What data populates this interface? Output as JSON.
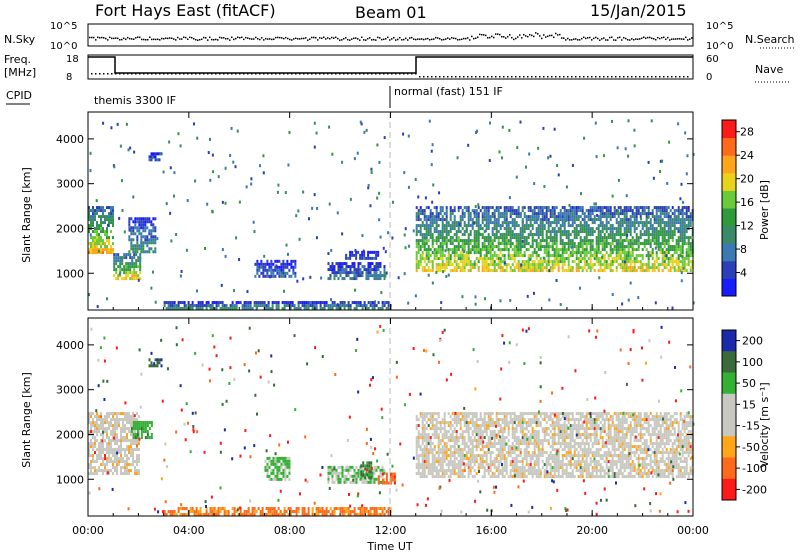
{
  "header": {
    "radar_title": "Fort Hays East (fitACF)",
    "beam": "Beam 01",
    "date": "15/Jan/2015"
  },
  "summary_panel": {
    "nsky_label": "N.Sky",
    "nsky_ticks": [
      "10^5",
      "10^0"
    ],
    "nsearch_label": "N.Search",
    "nsearch_ticks": [
      "10^5",
      "10^0"
    ],
    "freq_label_1": "Freq.",
    "freq_label_2": "[MHz]",
    "freq_ticks": [
      "18",
      "8"
    ],
    "nave_label": "Nave",
    "nave_ticks": [
      "60",
      "0"
    ],
    "cpid_label": "CPID",
    "cpid_modes": [
      {
        "name": "themis 3300 IF",
        "start_hour": 0
      },
      {
        "name": "normal (fast) 151 IF",
        "start_hour": 12
      }
    ]
  },
  "chart_data": [
    {
      "type": "heatmap",
      "parameter": "Power",
      "ylabel": "Slant Range [km]",
      "xlabel": "Time UT",
      "x_ticks": [
        "00:00",
        "04:00",
        "08:00",
        "12:00",
        "16:00",
        "20:00",
        "00:00"
      ],
      "xlim_hours": [
        0,
        24
      ],
      "y_ticks": [
        1000,
        2000,
        3000,
        4000
      ],
      "ylim": [
        180,
        4600
      ],
      "colorbar": {
        "label": "Power [dB]",
        "ticks": [
          4,
          8,
          12,
          16,
          20,
          24,
          28
        ],
        "range": [
          0,
          30
        ]
      },
      "regions": [
        {
          "t0": 0.0,
          "t1": 1.0,
          "r0": 1450,
          "r1": 2500,
          "level": 18
        },
        {
          "t0": 1.0,
          "t1": 2.1,
          "r0": 900,
          "r1": 1450,
          "level": 17
        },
        {
          "t0": 1.6,
          "t1": 2.7,
          "r0": 1500,
          "r1": 2250,
          "level": 9
        },
        {
          "t0": 2.4,
          "t1": 2.9,
          "r0": 3500,
          "r1": 3700,
          "level": 6
        },
        {
          "t0": 6.6,
          "t1": 8.2,
          "r0": 950,
          "r1": 1300,
          "level": 6
        },
        {
          "t0": 9.5,
          "t1": 11.8,
          "r0": 900,
          "r1": 1250,
          "level": 7
        },
        {
          "t0": 10.2,
          "t1": 11.5,
          "r0": 1300,
          "r1": 1500,
          "level": 5
        },
        {
          "t0": 13.0,
          "t1": 24.0,
          "r0": 1050,
          "r1": 2500,
          "level": 16
        },
        {
          "t0": 3.0,
          "t1": 12.0,
          "r0": 200,
          "r1": 380,
          "level": 10
        }
      ]
    },
    {
      "type": "heatmap",
      "parameter": "Velocity",
      "ylabel": "Slant Range [km]",
      "xlabel": "Time UT",
      "x_ticks": [
        "00:00",
        "04:00",
        "08:00",
        "12:00",
        "16:00",
        "20:00",
        "00:00"
      ],
      "xlim_hours": [
        0,
        24
      ],
      "y_ticks": [
        1000,
        2000,
        3000,
        4000
      ],
      "ylim": [
        180,
        4600
      ],
      "colorbar": {
        "label": "Velocity [m s⁻¹]",
        "ticks": [
          200,
          100,
          50,
          15,
          -15,
          -50,
          -100,
          -200
        ]
      },
      "regions": [
        {
          "t0": 0.0,
          "t1": 2.0,
          "r0": 1100,
          "r1": 2500,
          "velocity": 0
        },
        {
          "t0": 1.7,
          "t1": 2.5,
          "r0": 1900,
          "r1": 2300,
          "velocity": 60
        },
        {
          "t0": 2.4,
          "t1": 2.9,
          "r0": 3500,
          "r1": 3700,
          "velocity": 150
        },
        {
          "t0": 7.0,
          "t1": 8.0,
          "r0": 1000,
          "r1": 1500,
          "velocity": 40
        },
        {
          "t0": 9.5,
          "t1": 11.8,
          "r0": 900,
          "r1": 1300,
          "velocity": 30
        },
        {
          "t0": 10.8,
          "t1": 11.2,
          "r0": 1000,
          "r1": 1400,
          "velocity": 80
        },
        {
          "t0": 11.5,
          "t1": 12.2,
          "r0": 900,
          "r1": 1150,
          "velocity": -60
        },
        {
          "t0": 13.0,
          "t1": 24.0,
          "r0": 1050,
          "r1": 2500,
          "velocity": 0
        },
        {
          "t0": 3.0,
          "t1": 12.0,
          "r0": 200,
          "r1": 380,
          "velocity": -40
        }
      ]
    }
  ],
  "colors": {
    "power_scale": [
      "#1a1aff",
      "#2c3fb8",
      "#3a7ab0",
      "#3a8a6a",
      "#2f9a3a",
      "#6acb3a",
      "#e8d21a",
      "#ffa51a",
      "#ff6a1a",
      "#ff1a1a"
    ],
    "velocity_scale": [
      "#ff1a1a",
      "#ff6a1a",
      "#ffa51a",
      "#c8c8c0",
      "#c8c8c0",
      "#34b034",
      "#3a6a3a",
      "#1a2aa8"
    ],
    "gray_scatter": "#c8c8c0"
  }
}
